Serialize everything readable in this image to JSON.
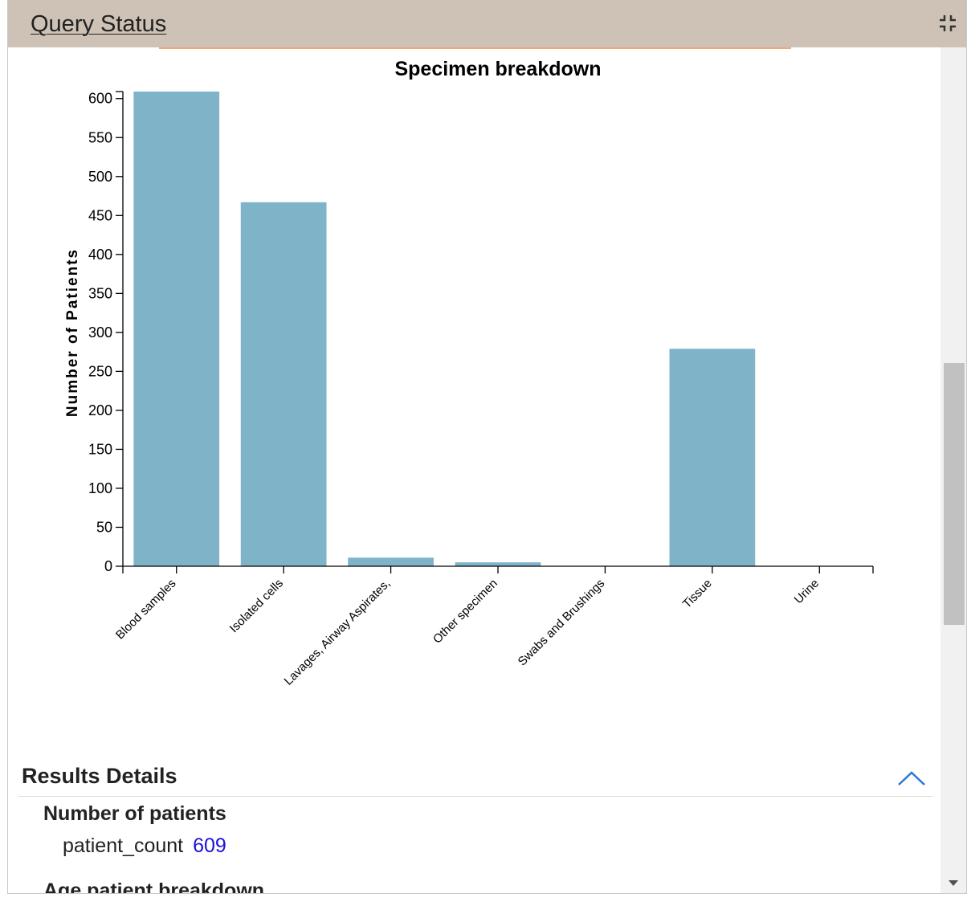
{
  "header": {
    "title": "Query Status",
    "collapse_icon": "collapse-arrows-icon"
  },
  "chart_data": {
    "type": "bar",
    "title": "Specimen breakdown",
    "xlabel": "",
    "ylabel": "Number of Patients",
    "categories": [
      "Blood samples",
      "Isolated cells",
      "Lavages, Airway Aspirates,",
      "Other specimen",
      "Swabs and Brushings",
      "Tissue",
      "Urine"
    ],
    "values": [
      609,
      467,
      11,
      5,
      0,
      279,
      0
    ],
    "ylim": [
      0,
      609
    ],
    "yticks": [
      0,
      50,
      100,
      150,
      200,
      250,
      300,
      350,
      400,
      450,
      500,
      550,
      600
    ],
    "grid": false,
    "bar_color": "#7fb3c8"
  },
  "results": {
    "title": "Results Details",
    "toggle_icon": "chevron-up-icon",
    "section_heading": "Number of patients",
    "key": "patient_count",
    "value": "609",
    "next_heading": "Age patient breakdown"
  },
  "colors": {
    "header_bg": "#cdc2b5",
    "accent_line": "#f0a77a",
    "link_value": "#1a12d9",
    "toggle": "#2b78d6"
  }
}
